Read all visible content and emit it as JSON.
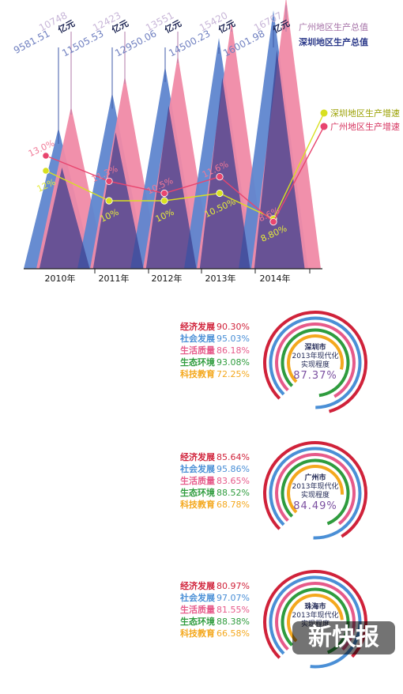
{
  "chart_data": [
    {
      "type": "area",
      "title": "",
      "categories": [
        "2010年",
        "2011年",
        "2012年",
        "2013年",
        "2014年"
      ],
      "legend": [
        {
          "name": "广州地区生产总值",
          "color": "#f08aa6"
        },
        {
          "name": "深圳地区生产总值",
          "color": "#3f5aa8"
        }
      ],
      "legend_growth": [
        {
          "name": "深圳地区生产增速",
          "color": "#d8e020"
        },
        {
          "name": "广州地区生产增速",
          "color": "#e8456e"
        }
      ],
      "unit": "亿元",
      "series": [
        {
          "name": "深圳地区生产总值",
          "values": [
            9581.51,
            11505.53,
            12950.06,
            14500.23,
            16001.98
          ]
        },
        {
          "name": "广州地区生产总值",
          "values": [
            10748,
            12423,
            13551,
            15420,
            16707
          ]
        }
      ],
      "gdp_labels_sz": [
        "9581.51",
        "11505.53",
        "12950.06",
        "14500.23",
        "16001.98"
      ],
      "gdp_labels_gz": [
        "10748",
        "12423",
        "13551",
        "15420",
        "16707"
      ],
      "growth_series": [
        {
          "name": "深圳地区生产增速",
          "values": [
            12,
            10,
            10,
            10.5,
            8.8
          ],
          "labels": [
            "12%",
            "10%",
            "10%",
            "10.50%",
            "8.80%"
          ]
        },
        {
          "name": "广州地区生产增速",
          "values": [
            13,
            11.3,
            10.5,
            11.6,
            8.6
          ],
          "labels": [
            "13.0%",
            "11.3%",
            "10.5%",
            "11.6%",
            "8.6%"
          ]
        }
      ],
      "growth_range": [
        6,
        16
      ]
    },
    {
      "type": "radial-bar",
      "ring_colors": [
        "#d0223a",
        "#4a8fd6",
        "#e65a8a",
        "#2f9c3e",
        "#f4a81e"
      ],
      "cities": [
        {
          "city": "深圳市",
          "line1": "2013年现代化",
          "line2": "实现程度",
          "total": "87.37%",
          "indicators": [
            {
              "name": "经济发展",
              "value": 90.3,
              "label": "90.30%",
              "color": "#d0223a"
            },
            {
              "name": "社会发展",
              "value": 95.03,
              "label": "95.03%",
              "color": "#4a8fd6"
            },
            {
              "name": "生活质量",
              "value": 86.18,
              "label": "86.18%",
              "color": "#e65a8a"
            },
            {
              "name": "生态环境",
              "value": 93.08,
              "label": "93.08%",
              "color": "#2f9c3e"
            },
            {
              "name": "科技教育",
              "value": 72.25,
              "label": "72.25%",
              "color": "#f4a81e"
            }
          ]
        },
        {
          "city": "广州市",
          "line1": "2013年现代化",
          "line2": "实现程度",
          "total": "84.49%",
          "indicators": [
            {
              "name": "经济发展",
              "value": 85.64,
              "label": "85.64%",
              "color": "#d0223a"
            },
            {
              "name": "社会发展",
              "value": 95.86,
              "label": "95.86%",
              "color": "#4a8fd6"
            },
            {
              "name": "生活质量",
              "value": 83.65,
              "label": "83.65%",
              "color": "#e65a8a"
            },
            {
              "name": "生态环境",
              "value": 88.52,
              "label": "88.52%",
              "color": "#2f9c3e"
            },
            {
              "name": "科技教育",
              "value": 68.78,
              "label": "68.78%",
              "color": "#f4a81e"
            }
          ]
        },
        {
          "city": "珠海市",
          "line1": "2013年现代化",
          "line2": "实现程度",
          "total": "",
          "indicators": [
            {
              "name": "经济发展",
              "value": 80.97,
              "label": "80.97%",
              "color": "#d0223a"
            },
            {
              "name": "社会发展",
              "value": 97.07,
              "label": "97.07%",
              "color": "#4a8fd6"
            },
            {
              "name": "生活质量",
              "value": 81.55,
              "label": "81.55%",
              "color": "#e65a8a"
            },
            {
              "name": "生态环境",
              "value": 88.38,
              "label": "88.38%",
              "color": "#2f9c3e"
            },
            {
              "name": "科技教育",
              "value": 66.58,
              "label": "66.58%",
              "color": "#f4a81e"
            }
          ]
        }
      ]
    }
  ],
  "watermark": "新快报"
}
